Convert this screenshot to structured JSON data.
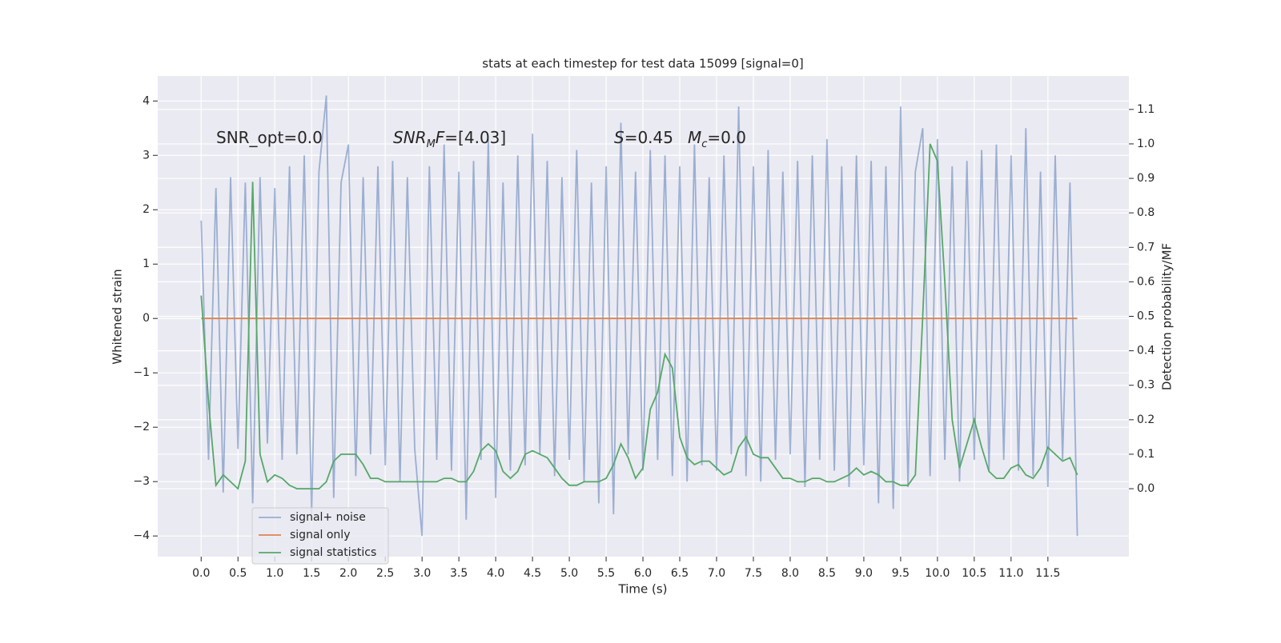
{
  "chart_data": {
    "type": "line",
    "title": "stats at each timestep for test data 15099 [signal=0]",
    "x_label": "Time (s)",
    "y_label": "Whitened strain",
    "y2_label": "Detection probability/MF",
    "annotations": [
      [
        {
          "text": "SNR_opt=0.0"
        }
      ],
      [
        {
          "text": "SNR",
          "italic": true
        },
        {
          "text": "M",
          "italic": true,
          "sub": true
        },
        {
          "text": "F",
          "italic": true
        },
        {
          "text": "=[4.03]"
        }
      ],
      [
        {
          "text": "S",
          "italic": true
        },
        {
          "text": "=0.45"
        }
      ],
      [
        {
          "text": "M",
          "italic": true
        },
        {
          "text": "c",
          "italic": true,
          "sub": true
        },
        {
          "text": "=0.0"
        }
      ]
    ],
    "x": [
      0,
      0.1,
      0.2,
      0.3,
      0.4,
      0.5,
      0.6,
      0.7,
      0.8,
      0.9,
      1,
      1.1,
      1.2,
      1.3,
      1.4,
      1.5,
      1.6,
      1.7,
      1.8,
      1.9,
      2,
      2.1,
      2.2,
      2.3,
      2.4,
      2.5,
      2.6,
      2.7,
      2.8,
      2.9,
      3,
      3.1,
      3.2,
      3.3,
      3.4,
      3.5,
      3.6,
      3.7,
      3.8,
      3.9,
      4,
      4.1,
      4.2,
      4.3,
      4.4,
      4.5,
      4.6,
      4.7,
      4.8,
      4.9,
      5,
      5.1,
      5.2,
      5.3,
      5.4,
      5.5,
      5.6,
      5.7,
      5.8,
      5.9,
      6,
      6.1,
      6.2,
      6.3,
      6.4,
      6.5,
      6.6,
      6.7,
      6.8,
      6.9,
      7,
      7.1,
      7.2,
      7.3,
      7.4,
      7.5,
      7.6,
      7.7,
      7.8,
      7.9,
      8,
      8.1,
      8.2,
      8.3,
      8.4,
      8.5,
      8.6,
      8.7,
      8.8,
      8.9,
      9,
      9.1,
      9.2,
      9.3,
      9.4,
      9.5,
      9.6,
      9.7,
      9.8,
      9.9,
      10,
      10.1,
      10.2,
      10.3,
      10.4,
      10.5,
      10.6,
      10.7,
      10.8,
      10.9,
      11,
      11.1,
      11.2,
      11.3,
      11.4,
      11.5,
      11.6,
      11.7,
      11.8,
      11.9
    ],
    "series": [
      {
        "name": "signal+ noise",
        "color": "#4c72b0",
        "opacity": 0.5,
        "values": [
          1.8,
          -2.6,
          2.4,
          -3.2,
          2.6,
          -2.4,
          2.5,
          -3.4,
          2.6,
          -2.3,
          2.4,
          -2.6,
          2.8,
          -2.5,
          3.0,
          -3.6,
          2.7,
          4.1,
          -3.3,
          2.5,
          3.2,
          -2.9,
          2.6,
          -2.5,
          2.8,
          -2.7,
          2.9,
          -3.0,
          2.6,
          -2.4,
          -4.0,
          2.8,
          -2.6,
          3.2,
          -2.8,
          2.7,
          -3.7,
          2.9,
          -2.6,
          3.3,
          -3.3,
          2.5,
          -2.8,
          3.0,
          -2.7,
          3.4,
          -2.5,
          2.9,
          -2.9,
          2.6,
          -2.6,
          3.1,
          -3.0,
          2.5,
          -3.4,
          2.8,
          -3.6,
          3.6,
          -2.5,
          2.7,
          -2.8,
          3.1,
          -2.6,
          3.0,
          -2.9,
          2.8,
          -3.0,
          3.2,
          -2.7,
          2.6,
          -2.8,
          3.0,
          -2.5,
          3.9,
          -2.9,
          2.8,
          -3.0,
          3.1,
          -2.6,
          2.7,
          -2.5,
          2.9,
          -3.1,
          3.0,
          -2.6,
          3.3,
          -2.8,
          2.8,
          -3.1,
          3.0,
          -2.7,
          2.9,
          -3.4,
          2.8,
          -3.5,
          3.9,
          -3.1,
          2.7,
          3.5,
          -2.9,
          3.3,
          -2.6,
          2.8,
          -3.0,
          2.9,
          -2.6,
          3.1,
          -2.8,
          3.2,
          -2.6,
          3.0,
          -2.8,
          3.5,
          -2.9,
          2.7,
          -3.1,
          3.0,
          -2.6,
          2.5,
          -4.0
        ]
      },
      {
        "name": "signal only",
        "color": "#dd8452",
        "values": [
          0,
          0,
          0,
          0,
          0,
          0,
          0,
          0,
          0,
          0,
          0,
          0,
          0,
          0,
          0,
          0,
          0,
          0,
          0,
          0,
          0,
          0,
          0,
          0,
          0,
          0,
          0,
          0,
          0,
          0,
          0,
          0,
          0,
          0,
          0,
          0,
          0,
          0,
          0,
          0,
          0,
          0,
          0,
          0,
          0,
          0,
          0,
          0,
          0,
          0,
          0,
          0,
          0,
          0,
          0,
          0,
          0,
          0,
          0,
          0,
          0,
          0,
          0,
          0,
          0,
          0,
          0,
          0,
          0,
          0,
          0,
          0,
          0,
          0,
          0,
          0,
          0,
          0,
          0,
          0,
          0,
          0,
          0,
          0,
          0,
          0,
          0,
          0,
          0,
          0,
          0,
          0,
          0,
          0,
          0,
          0,
          0,
          0,
          0,
          0,
          0,
          0,
          0,
          0,
          0,
          0,
          0,
          0,
          0,
          0,
          0,
          0,
          0,
          0,
          0,
          0,
          0,
          0,
          0,
          0
        ]
      },
      {
        "name": "signal statistics",
        "color": "#55a868",
        "axis": "y2",
        "values": [
          0.56,
          0.25,
          0.01,
          0.04,
          0.02,
          0,
          0.08,
          0.89,
          0.1,
          0.02,
          0.04,
          0.03,
          0.01,
          0,
          0,
          0,
          0,
          0.02,
          0.08,
          0.1,
          0.1,
          0.1,
          0.07,
          0.03,
          0.03,
          0.02,
          0.02,
          0.02,
          0.02,
          0.02,
          0.02,
          0.02,
          0.02,
          0.03,
          0.03,
          0.02,
          0.02,
          0.05,
          0.11,
          0.13,
          0.11,
          0.05,
          0.03,
          0.05,
          0.1,
          0.11,
          0.1,
          0.09,
          0.06,
          0.03,
          0.01,
          0.01,
          0.02,
          0.02,
          0.02,
          0.03,
          0.07,
          0.13,
          0.09,
          0.03,
          0.06,
          0.23,
          0.28,
          0.39,
          0.35,
          0.15,
          0.09,
          0.07,
          0.08,
          0.08,
          0.06,
          0.04,
          0.05,
          0.12,
          0.15,
          0.1,
          0.09,
          0.09,
          0.06,
          0.03,
          0.03,
          0.02,
          0.02,
          0.03,
          0.03,
          0.02,
          0.02,
          0.03,
          0.04,
          0.06,
          0.04,
          0.05,
          0.04,
          0.02,
          0.02,
          0.01,
          0.01,
          0.04,
          0.5,
          1,
          0.95,
          0.6,
          0.2,
          0.06,
          0.13,
          0.2,
          0.12,
          0.05,
          0.03,
          0.03,
          0.06,
          0.07,
          0.04,
          0.03,
          0.06,
          0.12,
          0.1,
          0.08,
          0.09,
          0.04
        ]
      }
    ],
    "xlim": [
      -0.59,
      12.6
    ],
    "xticks": [
      {
        "value": 0,
        "label": "0.0"
      },
      0.5,
      {
        "value": 1,
        "label": "1.0"
      },
      1.5,
      {
        "value": 2,
        "label": "2.0"
      },
      2.5,
      {
        "value": 3,
        "label": "3.0"
      },
      3.5,
      {
        "value": 4,
        "label": "4.0"
      },
      4.5,
      {
        "value": 5,
        "label": "5.0"
      },
      5.5,
      {
        "value": 6,
        "label": "6.0"
      },
      6.5,
      {
        "value": 7,
        "label": "7.0"
      },
      7.5,
      {
        "value": 8,
        "label": "8.0"
      },
      8.5,
      {
        "value": 9,
        "label": "9.0"
      },
      9.5,
      {
        "value": 10,
        "label": "10.0"
      },
      10.5,
      {
        "value": 11,
        "label": "11.0"
      },
      11.5
    ],
    "ylim": [
      -4.38,
      4.46
    ],
    "yticks": [
      {
        "value": -4,
        "label": "−4"
      },
      {
        "value": -3,
        "label": "−3"
      },
      {
        "value": -2,
        "label": "−2"
      },
      {
        "value": -1,
        "label": "−1"
      },
      0,
      1,
      2,
      3,
      4
    ],
    "y2lim": [
      -0.197,
      1.197
    ],
    "y2ticks": [
      {
        "value": 0,
        "label": "0.0"
      },
      0.1,
      0.2,
      0.3,
      0.4,
      0.5,
      0.6,
      0.7,
      0.8,
      0.9,
      {
        "value": 1,
        "label": "1.0"
      },
      1.1
    ],
    "grid": true,
    "legend": "lower left"
  }
}
